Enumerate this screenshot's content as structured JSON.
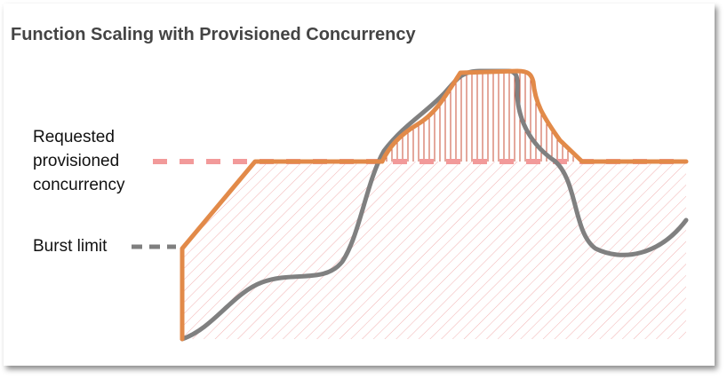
{
  "title": "Function Scaling with Provisioned Concurrency",
  "labels": {
    "requested_line1": "Requested",
    "requested_line2": "provisioned",
    "requested_line3": "concurrency",
    "burst": "Burst limit"
  },
  "colors": {
    "scaling_line": "#e28a49",
    "scaling_line_dark": "#c8662f",
    "provisioned_dash": "#f29a9a",
    "burst_dash": "#7f7f7f",
    "demand_line": "#808080",
    "hatch": "#f2b2b2",
    "vertical_hatch": "#c9523a"
  }
}
